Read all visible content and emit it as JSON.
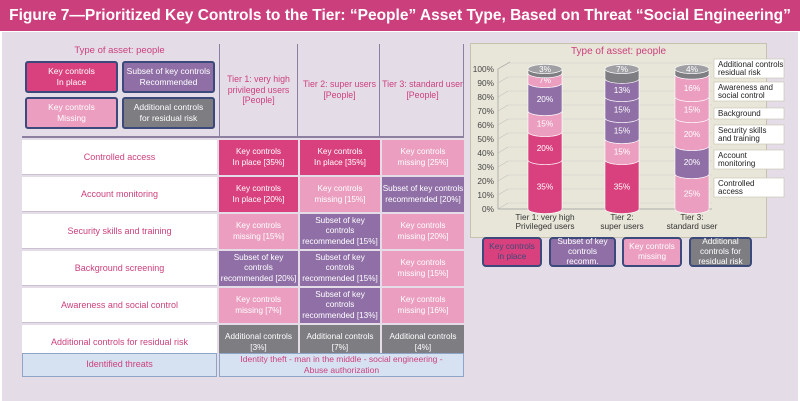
{
  "title": "Figure 7—Prioritized Key Controls to the Tier: “People” Asset Type, Based on Threat “Social Engineering”",
  "table": {
    "asset_type": "Type of asset: people",
    "legend": {
      "in_place": "Key controls\nIn place",
      "subset": "Subset of key controls\nRecommended",
      "missing": "Key controls\nMissing",
      "additional": "Additional controls\nfor residual risk"
    },
    "tiers": [
      "Tier 1: very high\nprivileged users\n[People]",
      "Tier 2: super users\n[People]",
      "Tier 3: standard user\n[People]"
    ],
    "rows": [
      {
        "label": "Controlled access",
        "cells": [
          {
            "text": "Key controls\nIn place [35%]",
            "kind": "in_place"
          },
          {
            "text": "Key controls\nIn place [35%]",
            "kind": "in_place"
          },
          {
            "text": "Key controls\nmissing [25%]",
            "kind": "missing"
          }
        ]
      },
      {
        "label": "Account monitoring",
        "cells": [
          {
            "text": "Key controls\nIn place [20%]",
            "kind": "in_place"
          },
          {
            "text": "Key controls\nmissing [15%]",
            "kind": "missing"
          },
          {
            "text": "Subset of key controls\nrecommended [20%]",
            "kind": "subset"
          }
        ]
      },
      {
        "label": "Security skills and training",
        "cells": [
          {
            "text": "Key controls\nmissing [15%]",
            "kind": "missing"
          },
          {
            "text": "Subset of key controls\nrecommended [15%]",
            "kind": "subset"
          },
          {
            "text": "Key controls\nmissing [20%]",
            "kind": "missing"
          }
        ]
      },
      {
        "label": "Background screening",
        "cells": [
          {
            "text": "Subset of key controls\nrecommended [20%]",
            "kind": "subset"
          },
          {
            "text": "Subset of key controls\nrecommended [15%]",
            "kind": "subset"
          },
          {
            "text": "Key controls\nmissing [15%]",
            "kind": "missing"
          }
        ]
      },
      {
        "label": "Awareness and social control",
        "cells": [
          {
            "text": "Key controls\nmissing [7%]",
            "kind": "missing"
          },
          {
            "text": "Subset of key controls\nrecommended [13%]",
            "kind": "subset"
          },
          {
            "text": "Key controls\nmissing [16%]",
            "kind": "missing"
          }
        ]
      },
      {
        "label": "Additional controls for residual risk",
        "cells": [
          {
            "text": "Additional controls\n[3%]",
            "kind": "additional"
          },
          {
            "text": "Additional controls\n[7%]",
            "kind": "additional"
          },
          {
            "text": "Additional controls\n[4%]",
            "kind": "additional"
          }
        ]
      }
    ],
    "threats_label": "Identified threats",
    "threats_text": "Identity theft - man in the middle - social engineering -\nAbuse authorization"
  },
  "colors": {
    "title_bar": "#cc3f7d",
    "in_place": "#d9417e",
    "subset": "#8f6fa6",
    "missing": "#eb9ec0",
    "additional": "#7d7d82",
    "panel": "#e4dde8"
  },
  "chart_data": {
    "type": "bar",
    "stacked": true,
    "title": "Type of asset: people",
    "categories": [
      "Tier 1: very high\nPrivileged users",
      "Tier 2:\nsuper users",
      "Tier 3:\nstandard user"
    ],
    "yticks": [
      "0%",
      "10%",
      "20%",
      "30%",
      "40%",
      "50%",
      "60%",
      "70%",
      "80%",
      "90%",
      "100%"
    ],
    "ylim": [
      0,
      100
    ],
    "series": [
      {
        "name": "Controlled\naccess",
        "values": [
          35,
          35,
          25
        ],
        "kinds": [
          "in_place",
          "in_place",
          "missing"
        ]
      },
      {
        "name": "Account\nmonitoring",
        "values": [
          20,
          15,
          20
        ],
        "kinds": [
          "in_place",
          "missing",
          "subset"
        ]
      },
      {
        "name": "Security skills\nand training",
        "values": [
          15,
          15,
          20
        ],
        "kinds": [
          "missing",
          "subset",
          "missing"
        ]
      },
      {
        "name": "Background",
        "values": [
          20,
          15,
          15
        ],
        "kinds": [
          "subset",
          "subset",
          "missing"
        ]
      },
      {
        "name": "Awareness and\nsocial control",
        "values": [
          7,
          13,
          16
        ],
        "kinds": [
          "missing",
          "subset",
          "missing"
        ]
      },
      {
        "name": "Additional controls\nresidual risk",
        "values": [
          3,
          7,
          4
        ],
        "kinds": [
          "additional",
          "additional",
          "additional"
        ]
      }
    ],
    "legend": {
      "in_place": "Key controls\nin place",
      "subset": "Subset of key\ncontrols recomm.",
      "missing": "Key controls\nmissing",
      "additional": "Additional\ncontrols for\nresidual risk"
    }
  }
}
